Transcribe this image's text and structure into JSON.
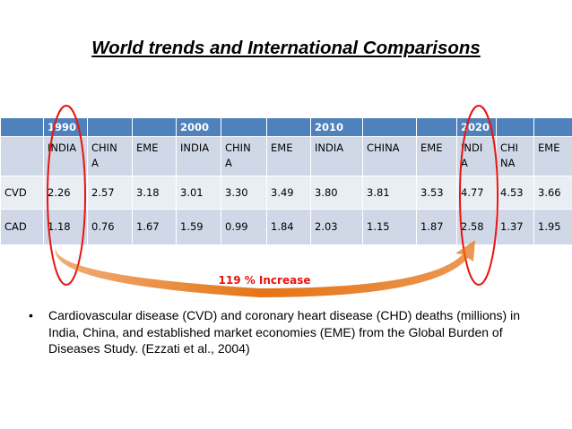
{
  "title": "World trends and International Comparisons",
  "table": {
    "year_row": [
      "1990",
      "",
      "",
      "2000",
      "",
      "",
      "2010",
      "",
      "",
      "2020",
      "",
      ""
    ],
    "header_row": [
      "",
      "INDIA",
      "CHIN\nA",
      "EME",
      "INDIA",
      "CHIN\nA",
      "EME",
      "INDIA",
      "CHINA",
      "EME",
      "INDI\nA",
      "CHI\nNA",
      "EME"
    ],
    "rows": [
      {
        "label": "CVD",
        "values": [
          "2.26",
          "2.57",
          "3.18",
          "3.01",
          "3.30",
          "3.49",
          "3.80",
          "3.81",
          "3.53",
          "4.77",
          "4.53",
          "3.66"
        ]
      },
      {
        "label": "CAD",
        "values": [
          "1.18",
          "0.76",
          "1.67",
          "1.59",
          "0.99",
          "1.84",
          "2.03",
          "1.15",
          "1.87",
          "2.58",
          "1.37",
          "1.95"
        ]
      }
    ]
  },
  "annotation": "119 % Increase",
  "bullet": {
    "symbol": "•",
    "text": "Cardiovascular disease (CVD) and coronary heart disease (CHD) deaths (millions) in India, China, and established market economies (EME) from the Global Burden of Diseases Study. (Ezzati et al., 2004)"
  },
  "colors": {
    "header_blue": "#4f81bd",
    "row_light": "#e9edf4",
    "row_mid": "#d0d8e8",
    "highlight_red": "#e8140e",
    "arrow_orange": "#e46c0a"
  }
}
